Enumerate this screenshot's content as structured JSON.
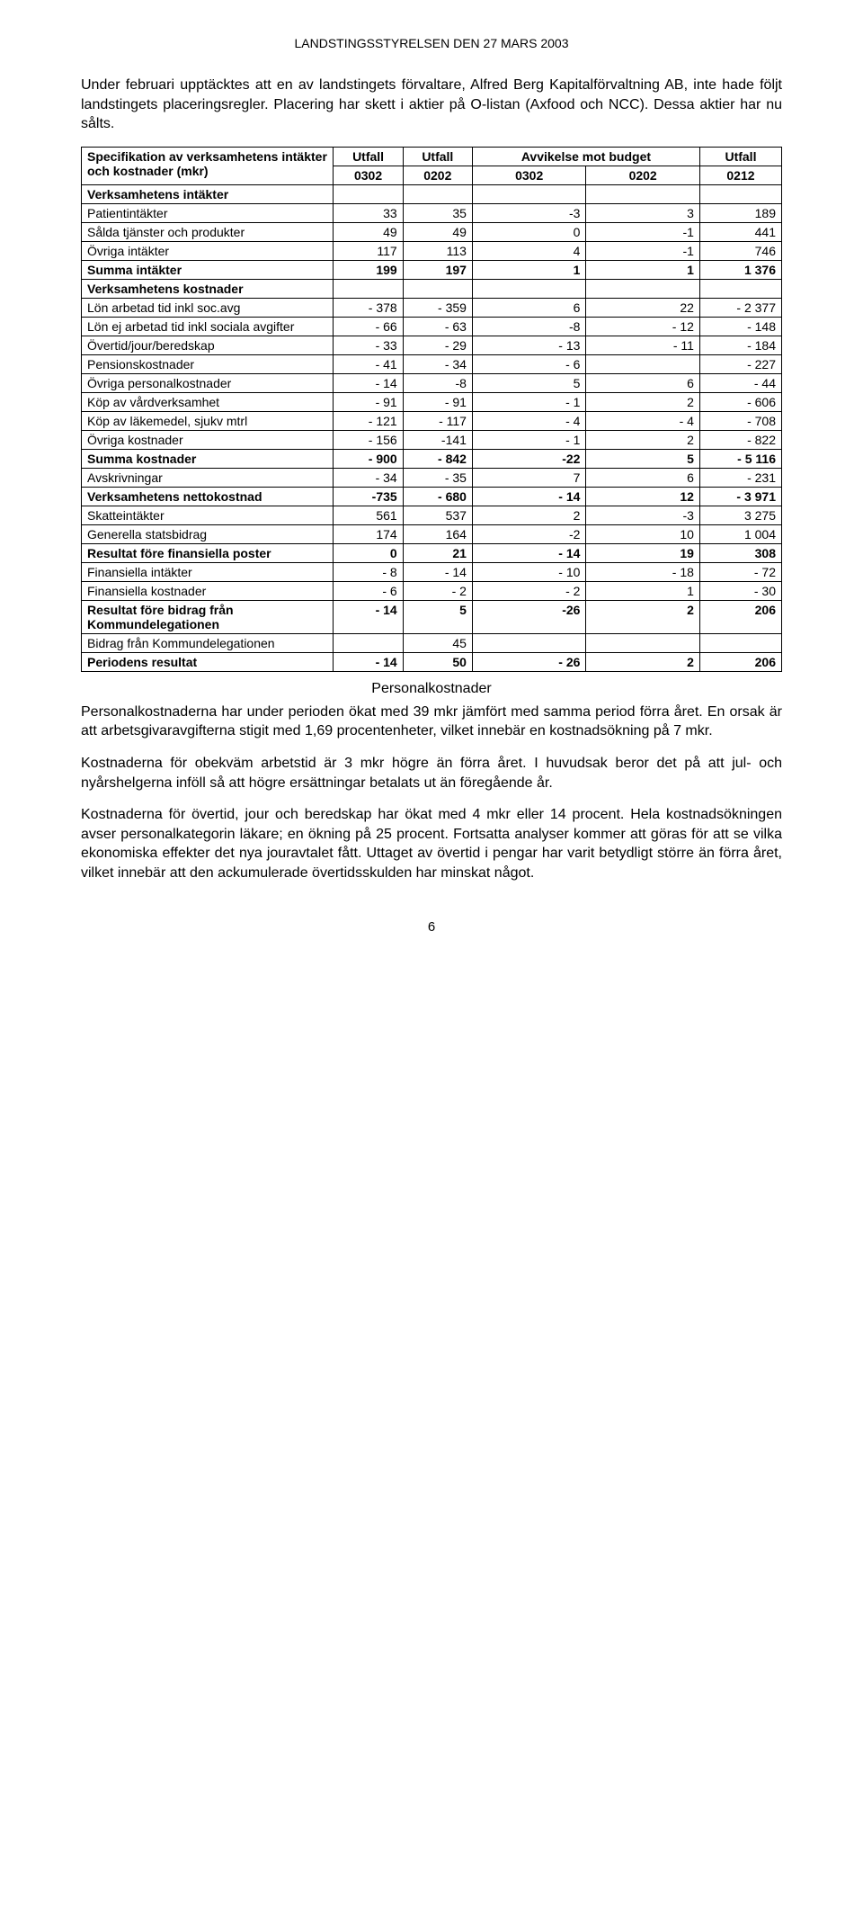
{
  "header": "LANDSTINGSSTYRELSEN DEN 27 MARS 2003",
  "para1": "Under februari upptäcktes att en av landstingets förvaltare, Alfred Berg Kapitalförvaltning AB, inte hade följt landstingets placeringsregler. Placering har skett i aktier på O-listan (Axfood och NCC). Dessa aktier har nu sålts.",
  "table": {
    "header_label": "Specifikation av verksamhetens intäkter och kostnader (mkr)",
    "col_utfall": "Utfall",
    "col_avvikelse": "Avvikelse mot budget",
    "sub": [
      "0302",
      "0202",
      "0302",
      "0202",
      "0212"
    ],
    "rows": [
      {
        "label": "Verksamhetens intäkter",
        "cells": [
          "",
          "",
          "",
          "",
          ""
        ],
        "section": true
      },
      {
        "label": "Patientintäkter",
        "cells": [
          "33",
          "35",
          "-3",
          "3",
          "189"
        ]
      },
      {
        "label": "Sålda tjänster och produkter",
        "cells": [
          "49",
          "49",
          "0",
          "-1",
          "441"
        ]
      },
      {
        "label": "Övriga intäkter",
        "cells": [
          "117",
          "113",
          "4",
          "-1",
          "746"
        ]
      },
      {
        "label": "Summa intäkter",
        "cells": [
          "199",
          "197",
          "1",
          "1",
          "1 376"
        ],
        "bold": true
      },
      {
        "label": "Verksamhetens kostnader",
        "cells": [
          "",
          "",
          "",
          "",
          ""
        ],
        "section": true
      },
      {
        "label": "Lön arbetad tid inkl soc.avg",
        "cells": [
          "- 378",
          "- 359",
          "6",
          "22",
          "- 2 377"
        ]
      },
      {
        "label": "Lön ej arbetad tid inkl sociala avgifter",
        "cells": [
          "- 66",
          "- 63",
          "-8",
          "- 12",
          "- 148"
        ]
      },
      {
        "label": "Övertid/jour/beredskap",
        "cells": [
          "- 33",
          "- 29",
          "- 13",
          "- 11",
          "- 184"
        ]
      },
      {
        "label": "Pensionskostnader",
        "cells": [
          "- 41",
          "- 34",
          "- 6",
          "",
          "- 227"
        ]
      },
      {
        "label": "Övriga personalkostnader",
        "cells": [
          "- 14",
          "-8",
          "5",
          "6",
          "- 44"
        ]
      },
      {
        "label": "Köp av vårdverksamhet",
        "cells": [
          "- 91",
          "- 91",
          "- 1",
          "2",
          "- 606"
        ]
      },
      {
        "label": "Köp av läkemedel, sjukv mtrl",
        "cells": [
          "- 121",
          "- 117",
          "- 4",
          "- 4",
          "- 708"
        ]
      },
      {
        "label": "Övriga kostnader",
        "cells": [
          "- 156",
          "-141",
          "- 1",
          "2",
          "- 822"
        ]
      },
      {
        "label": "Summa kostnader",
        "cells": [
          "- 900",
          "- 842",
          "-22",
          "5",
          "- 5 116"
        ],
        "bold": true
      },
      {
        "label": "Avskrivningar",
        "cells": [
          "- 34",
          "- 35",
          "7",
          "6",
          "- 231"
        ]
      },
      {
        "label": "Verksamhetens nettokostnad",
        "cells": [
          "-735",
          "- 680",
          "- 14",
          "12",
          "- 3 971"
        ],
        "bold": true
      },
      {
        "label": "Skatteintäkter",
        "cells": [
          "561",
          "537",
          "2",
          "-3",
          "3 275"
        ]
      },
      {
        "label": "Generella statsbidrag",
        "cells": [
          "174",
          "164",
          "-2",
          "10",
          "1 004"
        ]
      },
      {
        "label": "Resultat före finansiella poster",
        "cells": [
          "0",
          "21",
          "- 14",
          "19",
          "308"
        ],
        "bold": true
      },
      {
        "label": "Finansiella intäkter",
        "cells": [
          "- 8",
          "- 14",
          "- 10",
          "- 18",
          "- 72"
        ]
      },
      {
        "label": "Finansiella kostnader",
        "cells": [
          "- 6",
          "- 2",
          "- 2",
          "1",
          "- 30"
        ]
      },
      {
        "label": "Resultat före bidrag från Kommundelegationen",
        "cells": [
          "- 14",
          "5",
          "-26",
          "2",
          "206"
        ],
        "bold": true
      },
      {
        "label": "Bidrag från Kommundelegationen",
        "cells": [
          "",
          "45",
          "",
          "",
          ""
        ]
      },
      {
        "label": "Periodens resultat",
        "cells": [
          "- 14",
          "50",
          "- 26",
          "2",
          "206"
        ],
        "bold": true
      }
    ]
  },
  "subhead": "Personalkostnader",
  "para2": "Personalkostnaderna har under perioden ökat med 39 mkr jämfört med samma period förra året. En orsak är att arbetsgivaravgifterna stigit med 1,69 procentenheter, vilket innebär en kostnadsökning på 7 mkr.",
  "para3": "Kostnaderna för obekväm arbetstid är 3 mkr högre än förra året. I huvudsak beror det på att jul- och nyårshelgerna inföll så att högre ersättningar betalats ut än föregående år.",
  "para4": "Kostnaderna för övertid, jour och beredskap har ökat med 4 mkr eller 14 procent. Hela kostnadsökningen avser personalkategorin läkare; en ökning på 25 procent. Fortsatta analyser kommer att göras för att se vilka ekonomiska effekter det nya jouravtalet fått. Uttaget av övertid i pengar har varit betydligt större än förra året, vilket innebär att den ackumulerade övertidsskulden har minskat något.",
  "pagenum": "6"
}
